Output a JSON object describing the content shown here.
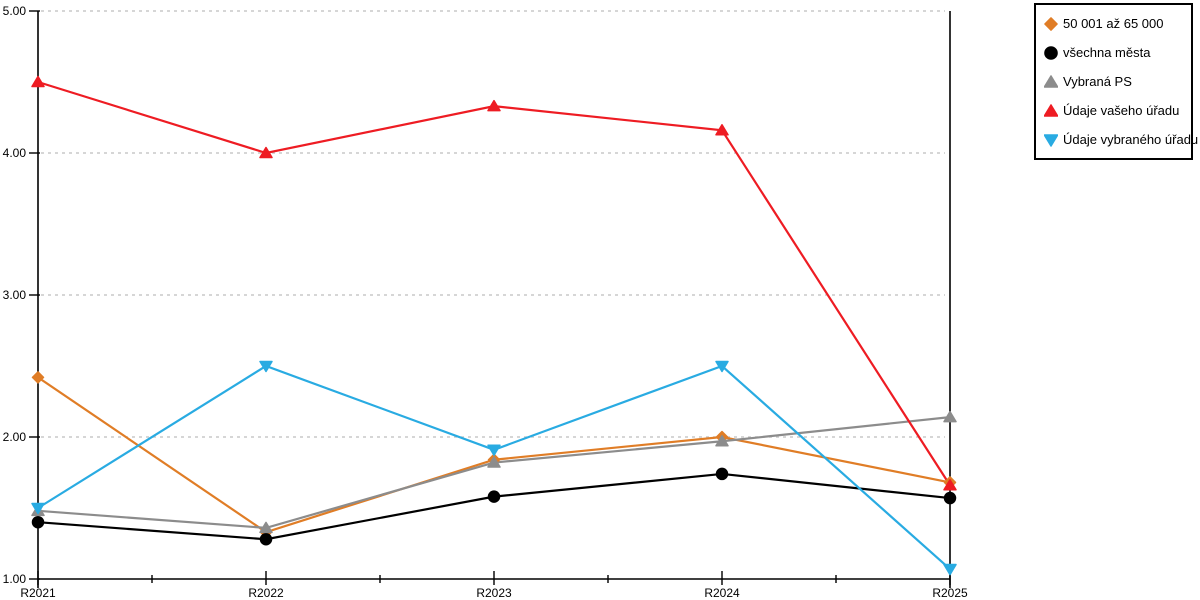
{
  "chart_data": {
    "type": "line",
    "title": "",
    "xlabel": "",
    "ylabel": "",
    "categories": [
      "R2021",
      "R2022",
      "R2023",
      "R2024",
      "R2025"
    ],
    "ylim": [
      1,
      5
    ],
    "y_ticks": [
      {
        "value": 1,
        "label": "1.00"
      },
      {
        "value": 2,
        "label": "2.00"
      },
      {
        "value": 3,
        "label": "3.00"
      },
      {
        "value": 4,
        "label": "4.00"
      },
      {
        "value": 5,
        "label": "5.00"
      }
    ],
    "y_gridlines": [
      2,
      3,
      4,
      5
    ],
    "grid": "horizontal-dashed",
    "legend_position": "outside-top-right",
    "colors": {
      "gridline": "#c9c9c9",
      "axis": "#000000",
      "background": "#ffffff"
    },
    "series": [
      {
        "name": "50 001 až 65 000",
        "color": "#E07D26",
        "marker": "diamond",
        "values": [
          2.42,
          1.33,
          1.84,
          2.0,
          1.68
        ]
      },
      {
        "name": "všechna města",
        "color": "#000000",
        "marker": "circle",
        "values": [
          1.4,
          1.28,
          1.58,
          1.74,
          1.57
        ]
      },
      {
        "name": "Vybraná PS",
        "color": "#8C8C8C",
        "marker": "triangle-up",
        "values": [
          1.48,
          1.36,
          1.82,
          1.97,
          2.14
        ]
      },
      {
        "name": "Údaje vašeho úřadu",
        "color": "#EE1C23",
        "marker": "triangle-up",
        "values": [
          4.5,
          4.0,
          4.33,
          4.16,
          1.66
        ]
      },
      {
        "name": "Údaje vybraného úřadu",
        "color": "#29ABE2",
        "marker": "triangle-down",
        "values": [
          1.5,
          2.5,
          1.91,
          2.5,
          1.07
        ]
      }
    ]
  }
}
